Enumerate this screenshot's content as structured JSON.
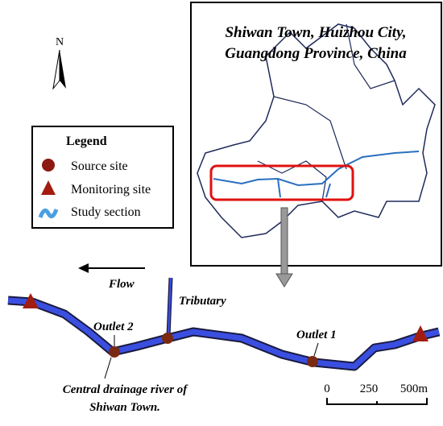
{
  "north": "N",
  "inset": {
    "title_lines": [
      "Shiwan Town, Huizhou City,",
      "Guangdong Province, China"
    ]
  },
  "legend": {
    "title": "Legend",
    "items": [
      "Source site",
      "Monitoring site",
      "Study section"
    ]
  },
  "labels": {
    "flow": "Flow",
    "tributary": "Tributary",
    "outlet_2": "Outlet 2",
    "outlet_1": "Outlet 1",
    "river_lines": [
      "Central drainage river of",
      "Shiwan Town."
    ]
  },
  "scale_bar": {
    "labels": [
      "0",
      "250",
      "500m"
    ]
  }
}
